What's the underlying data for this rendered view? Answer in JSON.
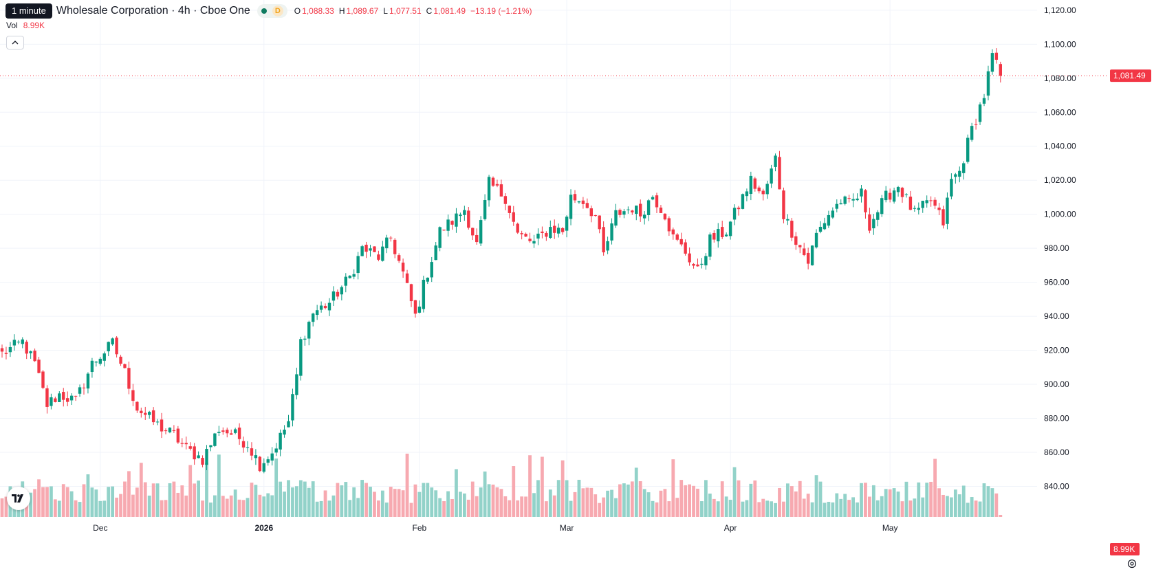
{
  "header": {
    "interval_tooltip": "1 minute",
    "symbol_title": "Wholesale Corporation · 4h · Cboe One",
    "data_badge": "D",
    "ohlc": {
      "o_label": "O",
      "o_value": "1,088.33",
      "h_label": "H",
      "h_value": "1,089.67",
      "l_label": "L",
      "l_value": "1,077.51",
      "c_label": "C",
      "c_value": "1,081.49",
      "change": "−13.19 (−1.21%)"
    },
    "volume_label": "Vol",
    "volume_value": "8.99K"
  },
  "colors": {
    "up": "#089981",
    "down": "#f23645",
    "volume_up": "#92d2c9",
    "volume_down": "#f7a9b0",
    "grid": "#f0f3fa"
  },
  "icons": {
    "collapse": "chevron-up-icon",
    "logo": "tradingview-logo-icon",
    "settings": "gear-icon"
  },
  "chart_data": {
    "type": "candlestick",
    "y_ticks": [
      "1,120.00",
      "1,100.00",
      "1,080.00",
      "1,060.00",
      "1,040.00",
      "1,020.00",
      "1,000.00",
      "980.00",
      "960.00",
      "940.00",
      "920.00",
      "900.00",
      "880.00",
      "860.00",
      "840.00"
    ],
    "ylim": [
      822,
      1126
    ],
    "x_labels": [
      {
        "label": "Dec",
        "index": 24,
        "bold": false
      },
      {
        "label": "2026",
        "index": 64,
        "bold": true
      },
      {
        "label": "Feb",
        "index": 102,
        "bold": false
      },
      {
        "label": "Mar",
        "index": 138,
        "bold": false
      },
      {
        "label": "Apr",
        "index": 178,
        "bold": false
      },
      {
        "label": "May",
        "index": 217,
        "bold": false
      }
    ],
    "last_price_label": "1,081.49",
    "last_price": 1081.49,
    "volume_label": "8.99K",
    "candle_anchors": [
      [
        0,
        918
      ],
      [
        5,
        925
      ],
      [
        8,
        912
      ],
      [
        11,
        888
      ],
      [
        14,
        894
      ],
      [
        18,
        890
      ],
      [
        22,
        912
      ],
      [
        27,
        924
      ],
      [
        30,
        907
      ],
      [
        33,
        886
      ],
      [
        38,
        876
      ],
      [
        42,
        870
      ],
      [
        45,
        862
      ],
      [
        49,
        856
      ],
      [
        53,
        874
      ],
      [
        57,
        870
      ],
      [
        60,
        865
      ],
      [
        63,
        853
      ],
      [
        66,
        860
      ],
      [
        70,
        878
      ],
      [
        72,
        905
      ],
      [
        73,
        925
      ],
      [
        76,
        942
      ],
      [
        80,
        948
      ],
      [
        85,
        963
      ],
      [
        88,
        980
      ],
      [
        92,
        975
      ],
      [
        95,
        986
      ],
      [
        98,
        965
      ],
      [
        101,
        940
      ],
      [
        103,
        958
      ],
      [
        107,
        990
      ],
      [
        111,
        998
      ],
      [
        113,
        1003
      ],
      [
        116,
        982
      ],
      [
        119,
        1018
      ],
      [
        123,
        1010
      ],
      [
        126,
        988
      ],
      [
        130,
        983
      ],
      [
        134,
        992
      ],
      [
        137,
        990
      ],
      [
        139,
        1010
      ],
      [
        142,
        1008
      ],
      [
        145,
        999
      ],
      [
        147,
        976
      ],
      [
        150,
        1000
      ],
      [
        154,
        1004
      ],
      [
        156,
        1000
      ],
      [
        159,
        1011
      ],
      [
        162,
        1000
      ],
      [
        164,
        986
      ],
      [
        167,
        978
      ],
      [
        170,
        966
      ],
      [
        173,
        985
      ],
      [
        177,
        990
      ],
      [
        179,
        1000
      ],
      [
        183,
        1020
      ],
      [
        186,
        1010
      ],
      [
        189,
        1033
      ],
      [
        191,
        1000
      ],
      [
        194,
        985
      ],
      [
        197,
        972
      ],
      [
        199,
        988
      ],
      [
        202,
        1000
      ],
      [
        205,
        1008
      ],
      [
        207,
        1006
      ],
      [
        210,
        1012
      ],
      [
        212,
        994
      ],
      [
        216,
        1010
      ],
      [
        219,
        1017
      ],
      [
        223,
        1000
      ],
      [
        227,
        1008
      ],
      [
        230,
        995
      ],
      [
        232,
        1020
      ],
      [
        234,
        1025
      ],
      [
        237,
        1050
      ],
      [
        240,
        1070
      ],
      [
        242,
        1093
      ],
      [
        244,
        1081.49
      ]
    ],
    "volume_note": "Volumes are per-candle relative; the pane has no printed volume axis."
  }
}
